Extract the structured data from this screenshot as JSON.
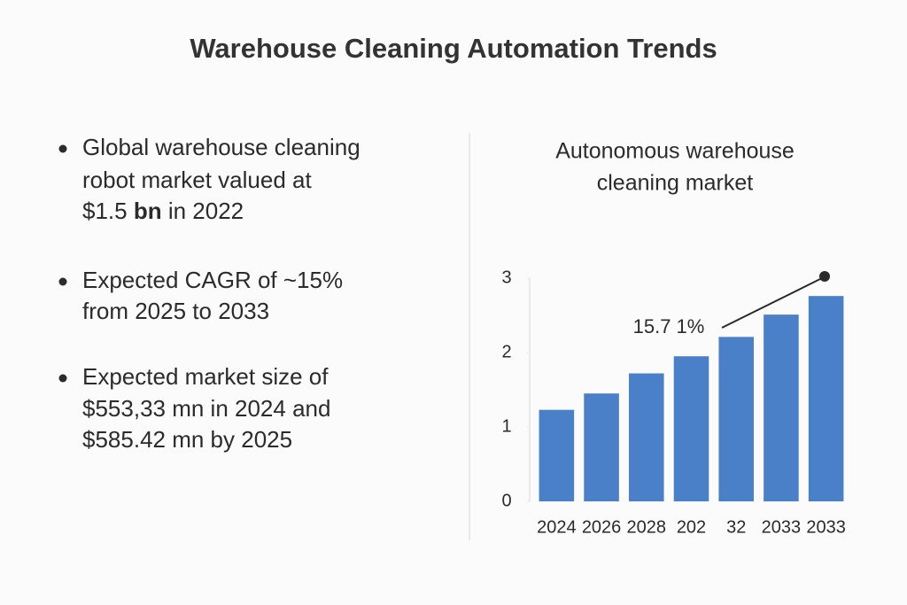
{
  "title": "Warehouse Cleaning Automation Trends",
  "bullets": [
    [
      "Global warehouse cleaning",
      "robot market valued at",
      "$1.5",
      "bn",
      "in 2022"
    ],
    [
      "Expected CAGR of ~15%",
      "from 2025 to 2033"
    ],
    [
      "Expected market size of",
      "$553,33 mn in 2024 and",
      "$585.42 mn by 2025"
    ]
  ],
  "chart_data": {
    "type": "bar",
    "title": [
      "Autonomous warehouse",
      "cleaning market"
    ],
    "categories": [
      "2024",
      "2026",
      "2028",
      "202",
      "32",
      "2033",
      "2033"
    ],
    "values": [
      1.23,
      1.45,
      1.72,
      1.95,
      2.21,
      2.51,
      2.76
    ],
    "color": "#4a80c8",
    "ylim": [
      0,
      3
    ],
    "yticks": [
      0,
      1,
      2,
      3
    ],
    "annotation": "15.7 1%"
  }
}
